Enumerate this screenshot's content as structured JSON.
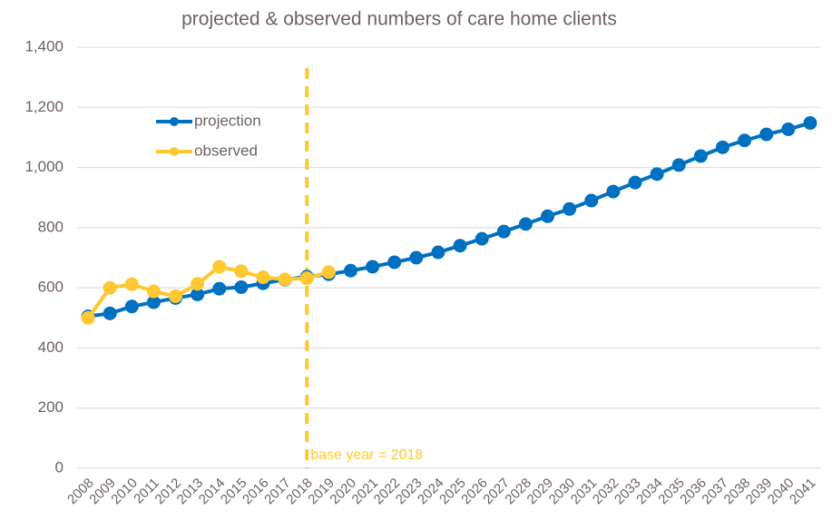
{
  "chart_data": {
    "type": "line",
    "title": "projected & observed numbers of care home clients",
    "categories": [
      "2008",
      "2009",
      "2010",
      "2011",
      "2012",
      "2013",
      "2014",
      "2015",
      "2016",
      "2017",
      "2018",
      "2019",
      "2020",
      "2021",
      "2022",
      "2023",
      "2024",
      "2025",
      "2026",
      "2027",
      "2028",
      "2029",
      "2030",
      "2031",
      "2032",
      "2033",
      "2034",
      "2035",
      "2036",
      "2037",
      "2038",
      "2039",
      "2040",
      "2041"
    ],
    "series": [
      {
        "name": "projection",
        "color": "#0070c0",
        "values": [
          505,
          515,
          538,
          552,
          566,
          578,
          597,
          602,
          615,
          627,
          637,
          645,
          657,
          670,
          685,
          700,
          718,
          740,
          763,
          787,
          812,
          838,
          862,
          890,
          920,
          950,
          978,
          1008,
          1038,
          1067,
          1090,
          1110,
          1127,
          1148
        ]
      },
      {
        "name": "observed",
        "color": "#ffc830",
        "values": [
          500,
          600,
          612,
          588,
          572,
          613,
          670,
          655,
          635,
          628,
          632,
          652,
          null,
          null,
          null,
          null,
          null,
          null,
          null,
          null,
          null,
          null,
          null,
          null,
          null,
          null,
          null,
          null,
          null,
          null,
          null,
          null,
          null,
          null
        ]
      }
    ],
    "ylim": [
      0,
      1400
    ],
    "yticks": [
      0,
      200,
      400,
      600,
      800,
      {
        "value": 1000,
        "label": "1,000"
      },
      {
        "value": 1200,
        "label": "1,200"
      },
      {
        "value": 1400,
        "label": "1,400"
      }
    ],
    "grid": true,
    "legend": "upper left",
    "annotations": [
      {
        "text": "base year = 2018",
        "x": "2018",
        "color": "#ffc830"
      }
    ]
  }
}
